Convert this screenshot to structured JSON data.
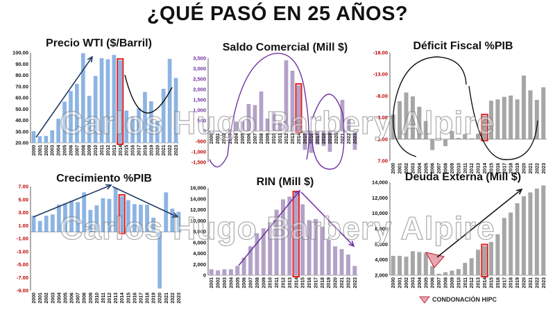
{
  "main_title": "¿QUÉ PASÓ EN 25 AÑOS?",
  "watermark": "Carlos Hugo Barbery Alpire",
  "legend_label": "CONDONACIÓN HIPC",
  "colors": {
    "blue_bar": "#8DB4E2",
    "purple_bar": "#B3A2C7",
    "gray_bar": "#A6A6A6",
    "highlight": "#E02020",
    "arrow": "#1F3864",
    "curve": "#7030A0"
  },
  "chart_data": [
    {
      "type": "bar",
      "title": "Precio WTI ($/Barril)",
      "categories": [
        "2000",
        "2001",
        "2002",
        "2003",
        "2004",
        "2005",
        "2006",
        "2007",
        "2008",
        "2009",
        "2010",
        "2011",
        "2012",
        "2013",
        "2014",
        "2015",
        "2016",
        "2017",
        "2018",
        "2019",
        "2020",
        "2021",
        "2022",
        "2023"
      ],
      "values": [
        30.4,
        25.9,
        26.1,
        31.1,
        41.4,
        56.5,
        66.0,
        72.3,
        99.6,
        61.7,
        79.4,
        95.1,
        94.2,
        98.0,
        93.3,
        48.7,
        43.3,
        50.8,
        65.2,
        56.9,
        39.2,
        68.0,
        94.5,
        77.6
      ],
      "ylim": [
        20,
        100
      ],
      "yticks": [
        "20.00",
        "30.00",
        "40.00",
        "50.00",
        "60.00",
        "70.00",
        "80.00",
        "90.00",
        "100.00"
      ],
      "highlight": "2014",
      "bar_color": "#8DB4E2"
    },
    {
      "type": "bar",
      "title": "Saldo Comercial (Mill $)",
      "categories": [
        "2000",
        "2001",
        "2002",
        "2003",
        "2004",
        "2005",
        "2006",
        "2007",
        "2008",
        "2009",
        "2010",
        "2011",
        "2012",
        "2013",
        "2014",
        "2015",
        "2016",
        "2017",
        "2018",
        "2019",
        "2020",
        "2021",
        "2022",
        "2023"
      ],
      "values": [
        -80,
        -30,
        -10,
        100,
        450,
        480,
        1300,
        1250,
        1900,
        600,
        900,
        450,
        3400,
        2900,
        2200,
        -900,
        -1050,
        -650,
        -720,
        -1000,
        -150,
        1500,
        600,
        -900
      ],
      "ylim": [
        -1500,
        3500
      ],
      "yticks": [
        "-1,500",
        "-1,000",
        "-500",
        "0",
        "500",
        "1,000",
        "1,500",
        "2,000",
        "2,500",
        "3,000",
        "3,500"
      ],
      "highlight": "2014",
      "bar_color": "#B3A2C7"
    },
    {
      "type": "bar",
      "title": "Déficit Fiscal %PIB",
      "categories": [
        "2000",
        "2001",
        "2002",
        "2003",
        "2004",
        "2005",
        "2006",
        "2007",
        "2008",
        "2009",
        "2010",
        "2011",
        "2012",
        "2013",
        "2014",
        "2015",
        "2016",
        "2017",
        "2018",
        "2019",
        "2020",
        "2021",
        "2022",
        "2023"
      ],
      "values": [
        -3.7,
        -6.8,
        -8.8,
        -7.9,
        -5.5,
        -2.2,
        4.5,
        1.7,
        3.6,
        0.1,
        1.7,
        0.8,
        1.8,
        0.7,
        -3.4,
        -6.9,
        -7.2,
        -7.8,
        -8.1,
        -7.2,
        -12.7,
        -9.3,
        -7.1,
        -10.0
      ],
      "ylim": [
        -18,
        7
      ],
      "yticks": [
        "7.00",
        "2.00",
        "-3.00",
        "-8.00",
        "-13.00",
        "-18.00"
      ],
      "inverted_axis": true,
      "highlight": "2014",
      "bar_color": "#A6A6A6"
    },
    {
      "type": "bar",
      "title": "Crecimiento %PIB",
      "categories": [
        "2000",
        "2001",
        "2002",
        "2003",
        "2004",
        "2005",
        "2006",
        "2007",
        "2008",
        "2009",
        "2010",
        "2011",
        "2012",
        "2013",
        "2014",
        "2015",
        "2016",
        "2017",
        "2018",
        "2019",
        "2020",
        "2021",
        "2022",
        "2023"
      ],
      "values": [
        2.5,
        1.7,
        2.5,
        2.7,
        4.2,
        4.4,
        4.8,
        4.6,
        6.1,
        3.4,
        4.1,
        5.2,
        5.1,
        6.8,
        5.5,
        4.9,
        4.3,
        4.2,
        4.2,
        2.2,
        -8.7,
        6.1,
        3.6,
        3.1
      ],
      "ylim": [
        -9,
        7
      ],
      "yticks": [
        "-9.00",
        "-7.00",
        "-5.00",
        "-3.00",
        "-1.00",
        "1.00",
        "3.00",
        "5.00",
        "7.00"
      ],
      "highlight": "2014",
      "bar_color": "#8DB4E2"
    },
    {
      "type": "bar",
      "title": "RIN (Mill $)",
      "categories": [
        "2001",
        "2002",
        "2003",
        "2004",
        "2005",
        "2006",
        "2007",
        "2008",
        "2009",
        "2010",
        "2011",
        "2012",
        "2013",
        "2014",
        "2015",
        "2016",
        "2017",
        "2018",
        "2019",
        "2020",
        "2021",
        "2022",
        "2023"
      ],
      "values": [
        1100,
        900,
        1100,
        1100,
        1700,
        3200,
        5300,
        7700,
        8600,
        9700,
        12000,
        13900,
        14400,
        15100,
        13000,
        10100,
        10300,
        8900,
        6500,
        5300,
        4800,
        3800,
        1700
      ],
      "ylim": [
        0,
        16000
      ],
      "yticks": [
        "0",
        "2,000",
        "4,000",
        "6,000",
        "8,000",
        "10,000",
        "12,000",
        "14,000",
        "16,000"
      ],
      "highlight": "2014",
      "bar_color": "#B3A2C7"
    },
    {
      "type": "bar",
      "title": "Deuda Externa (Mill $)",
      "categories": [
        "2000",
        "2001",
        "2002",
        "2003",
        "2004",
        "2005",
        "2006",
        "2007",
        "2008",
        "2009",
        "2010",
        "2011",
        "2012",
        "2013",
        "2014",
        "2015",
        "2016",
        "2017",
        "2018",
        "2019",
        "2020",
        "2021",
        "2022",
        "2023"
      ],
      "values": [
        4500,
        4500,
        4400,
        5100,
        5000,
        4900,
        3200,
        2200,
        2400,
        2600,
        2800,
        3600,
        4200,
        5300,
        5800,
        6300,
        7300,
        9400,
        10100,
        11300,
        12200,
        12700,
        13200,
        13600
      ],
      "ylim": [
        2000,
        14000
      ],
      "yticks": [
        "2,000",
        "4,000",
        "6,000",
        "8,000",
        "10,000",
        "12,000",
        "14,000"
      ],
      "highlight": "2014",
      "bar_color": "#A6A6A6"
    }
  ]
}
